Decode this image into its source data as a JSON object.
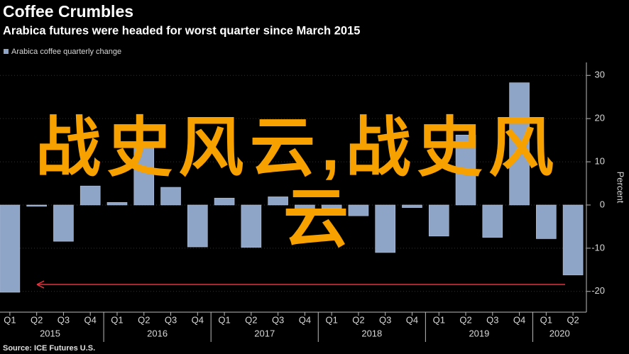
{
  "chart_data": {
    "type": "bar",
    "title": "Coffee Crumbles",
    "subtitle": "Arabica futures were headed for worst quarter since March 2015",
    "source": "Source: ICE Futures U.S.",
    "y_label": "Percent",
    "categories": [
      "Q1",
      "Q2",
      "Q3",
      "Q4",
      "Q1",
      "Q2",
      "Q3",
      "Q4",
      "Q1",
      "Q2",
      "Q3",
      "Q4",
      "Q1",
      "Q2",
      "Q3",
      "Q4",
      "Q1",
      "Q2",
      "Q3",
      "Q4",
      "Q1",
      "Q2"
    ],
    "category_years": [
      "2015",
      "2015",
      "2015",
      "2015",
      "2016",
      "2016",
      "2016",
      "2016",
      "2017",
      "2017",
      "2017",
      "2017",
      "2018",
      "2018",
      "2018",
      "2018",
      "2019",
      "2019",
      "2019",
      "2019",
      "2020",
      "2020"
    ],
    "series": [
      {
        "name": "Arabica coffee quarterly change",
        "color": "#8fa5c8",
        "values": [
          -20.2,
          -0.3,
          -8.4,
          4.4,
          0.6,
          14,
          4.1,
          -9.7,
          1.6,
          -9.8,
          1.9,
          -1.5,
          -0.8,
          -2.5,
          -11,
          -0.6,
          -7.2,
          16.2,
          -7.5,
          28.3,
          -7.8,
          -16.2
        ]
      }
    ],
    "ylim": [
      -24.8,
      33
    ],
    "yticks": [
      -20,
      -10,
      0,
      10,
      20,
      30
    ],
    "grid": true,
    "arrow": {
      "value": -18.4,
      "color": "#e0323c"
    },
    "annotation": {
      "lines": [
        "战史风云,战史风",
        "云"
      ],
      "color": "#f7a100"
    }
  }
}
